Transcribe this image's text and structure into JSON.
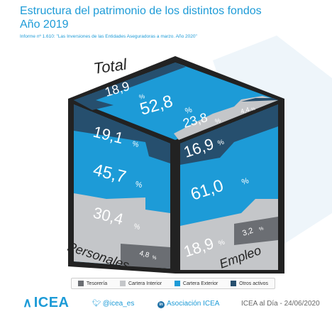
{
  "header": {
    "title_line1": "Estructura del patrimonio de los distintos fondos",
    "title_line2": "Año 2019",
    "subtitle": "Informe nº 1.610: \"Las Inversiones de las Entidades Aseguradoras a marzo. Año 2020\""
  },
  "colors": {
    "tesoreria": "#6b6e73",
    "cartera_interior": "#c4c6c9",
    "cartera_exterior": "#1d9bd7",
    "otros_activos": "#264f6e"
  },
  "chart_data": {
    "type": "table",
    "categories": [
      "Tesorería",
      "Cartera Interior",
      "Cartera Exterior",
      "Otros activos"
    ],
    "series": [
      {
        "name": "Total",
        "values": [
          null,
          23.8,
          52.8,
          18.9
        ]
      },
      {
        "name": "Personales",
        "values": [
          4.8,
          30.4,
          45.7,
          19.1
        ]
      },
      {
        "name": "Empleo",
        "values": [
          3.2,
          18.9,
          61.0,
          16.9
        ]
      }
    ],
    "labels": {
      "total": {
        "otros": "18,9",
        "exterior": "52,8",
        "interior": "23,8",
        "extra": "4,4"
      },
      "personales": {
        "otros": "19,1",
        "exterior": "45,7",
        "interior": "30,4",
        "tesoreria": "4,8"
      },
      "empleo": {
        "otros": "16,9",
        "exterior": "61,0",
        "interior": "18,9",
        "tesoreria": "3,2"
      }
    },
    "percent_sign": "%"
  },
  "legend": {
    "items": [
      {
        "label": "Tesorería",
        "color": "#6b6e73",
        "icon": "swatch"
      },
      {
        "label": "Cartera Interior",
        "color": "#c4c6c9",
        "icon": "swatch"
      },
      {
        "label": "Cartera Exterior",
        "color": "#1d9bd7",
        "icon": "swatch"
      },
      {
        "label": "Otros activos",
        "color": "#264f6e",
        "icon": "swatch"
      }
    ]
  },
  "footer": {
    "logo": "ICEA",
    "twitter": "@icea_es",
    "linkedin": "Asociación ICEA",
    "date": "ICEA al Día - 24/06/2020"
  }
}
